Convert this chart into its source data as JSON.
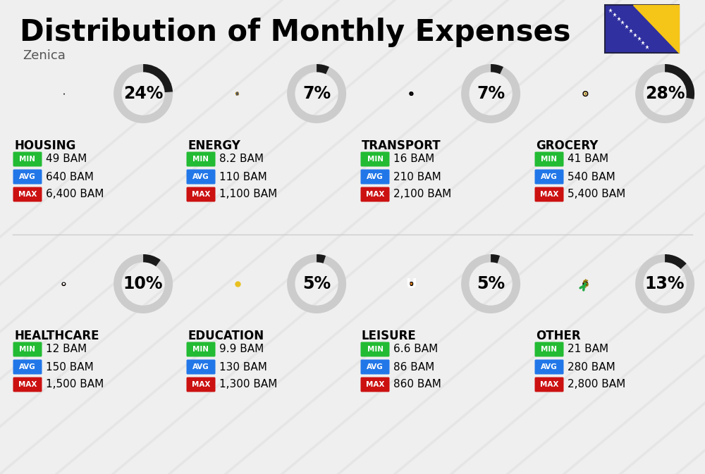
{
  "title": "Distribution of Monthly Expenses",
  "subtitle": "Zenica",
  "background_color": "#efefef",
  "stripe_color": "#e2e2e2",
  "categories": [
    {
      "name": "HOUSING",
      "percent": 24,
      "min": "49 BAM",
      "avg": "640 BAM",
      "max": "6,400 BAM",
      "icon": "housing",
      "col": 0,
      "row": 0
    },
    {
      "name": "ENERGY",
      "percent": 7,
      "min": "8.2 BAM",
      "avg": "110 BAM",
      "max": "1,100 BAM",
      "icon": "energy",
      "col": 1,
      "row": 0
    },
    {
      "name": "TRANSPORT",
      "percent": 7,
      "min": "16 BAM",
      "avg": "210 BAM",
      "max": "2,100 BAM",
      "icon": "transport",
      "col": 2,
      "row": 0
    },
    {
      "name": "GROCERY",
      "percent": 28,
      "min": "41 BAM",
      "avg": "540 BAM",
      "max": "5,400 BAM",
      "icon": "grocery",
      "col": 3,
      "row": 0
    },
    {
      "name": "HEALTHCARE",
      "percent": 10,
      "min": "12 BAM",
      "avg": "150 BAM",
      "max": "1,500 BAM",
      "icon": "healthcare",
      "col": 0,
      "row": 1
    },
    {
      "name": "EDUCATION",
      "percent": 5,
      "min": "9.9 BAM",
      "avg": "130 BAM",
      "max": "1,300 BAM",
      "icon": "education",
      "col": 1,
      "row": 1
    },
    {
      "name": "LEISURE",
      "percent": 5,
      "min": "6.6 BAM",
      "avg": "86 BAM",
      "max": "860 BAM",
      "icon": "leisure",
      "col": 2,
      "row": 1
    },
    {
      "name": "OTHER",
      "percent": 13,
      "min": "21 BAM",
      "avg": "280 BAM",
      "max": "2,800 BAM",
      "icon": "other",
      "col": 3,
      "row": 1
    }
  ],
  "min_color": "#22bb33",
  "avg_color": "#2277e8",
  "max_color": "#cc1111",
  "donut_filled": "#1a1a1a",
  "donut_empty": "#cccccc",
  "title_fontsize": 30,
  "subtitle_fontsize": 13,
  "category_fontsize": 12,
  "value_fontsize": 11,
  "percent_fontsize": 17,
  "badge_fontsize": 7.5,
  "flag_blue": "#3030a0",
  "flag_yellow": "#f5c518"
}
